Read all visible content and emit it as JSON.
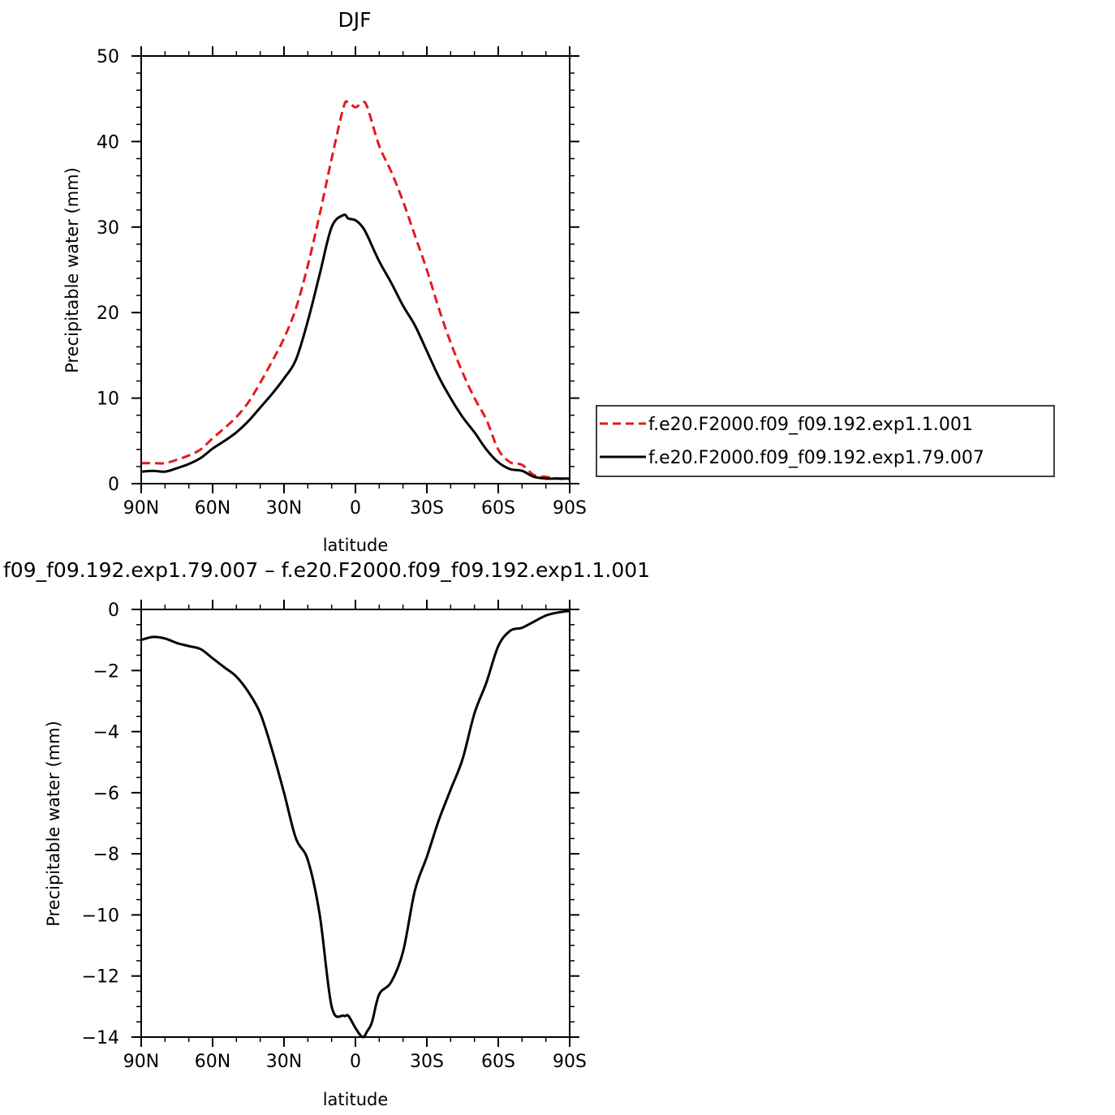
{
  "chart_data": [
    {
      "type": "line",
      "title": "DJF",
      "xlabel": "latitude",
      "ylabel": "Precipitable water (mm)",
      "xlim": [
        -90,
        90
      ],
      "ylim": [
        0,
        50
      ],
      "x_tick_values": [
        -90,
        -60,
        -30,
        0,
        30,
        60,
        90
      ],
      "x_tick_labels": [
        "90N",
        "60N",
        "30N",
        "0",
        "30S",
        "60S",
        "90S"
      ],
      "y_ticks": [
        0,
        10,
        20,
        30,
        40,
        50
      ],
      "x": [
        -90,
        -85,
        -80,
        -75,
        -70,
        -65,
        -60,
        -55,
        -50,
        -45,
        -40,
        -35,
        -30,
        -25,
        -20,
        -15,
        -10,
        -5,
        -3,
        0,
        3,
        5,
        10,
        15,
        20,
        25,
        30,
        35,
        40,
        45,
        50,
        55,
        60,
        65,
        70,
        75,
        80,
        85,
        90
      ],
      "series": [
        {
          "name": "f.e20.F2000.f09_f09.192.exp1.1.001",
          "color": "#e41a1c",
          "dash": true,
          "values": [
            2.4,
            2.4,
            2.4,
            2.8,
            3.3,
            4.0,
            5.3,
            6.5,
            7.8,
            9.5,
            11.8,
            14.3,
            17.0,
            20.5,
            25.5,
            31.5,
            38.0,
            44.0,
            44.6,
            44.0,
            44.6,
            44.0,
            39.5,
            36.5,
            33.0,
            29.0,
            25.0,
            20.5,
            16.5,
            13.0,
            10.0,
            7.5,
            4.0,
            2.5,
            2.2,
            1.0,
            0.8,
            0.6,
            0.5
          ]
        },
        {
          "name": "f.e20.F2000.f09_f09.192.exp1.79.007",
          "color": "#000000",
          "dash": false,
          "values": [
            1.4,
            1.5,
            1.4,
            1.8,
            2.3,
            3.0,
            4.1,
            5.0,
            6.0,
            7.3,
            8.9,
            10.5,
            12.3,
            14.5,
            19.0,
            24.5,
            30.0,
            31.4,
            31.0,
            30.8,
            30.0,
            29.0,
            26.0,
            23.5,
            20.8,
            18.5,
            15.5,
            12.5,
            10.0,
            7.8,
            6.0,
            4.0,
            2.5,
            1.7,
            1.5,
            0.8,
            0.6,
            0.6,
            0.6
          ]
        }
      ],
      "legend": {
        "placement": "right",
        "entries": [
          "f.e20.F2000.f09_f09.192.exp1.1.001",
          "f.e20.F2000.f09_f09.192.exp1.79.007"
        ]
      }
    },
    {
      "type": "line",
      "title": "f09_f09.192.exp1.79.007 – f.e20.F2000.f09_f09.192.exp1.1.001",
      "xlabel": "latitude",
      "ylabel": "Precipitable water (mm)",
      "xlim": [
        -90,
        90
      ],
      "ylim": [
        -14,
        0
      ],
      "x_tick_values": [
        -90,
        -60,
        -30,
        0,
        30,
        60,
        90
      ],
      "x_tick_labels": [
        "90N",
        "60N",
        "30N",
        "0",
        "30S",
        "60S",
        "90S"
      ],
      "y_ticks": [
        0,
        -2,
        -4,
        -6,
        -8,
        -10,
        -12,
        -14
      ],
      "y_tick_labels": [
        "0",
        "−2",
        "−4",
        "−6",
        "−8",
        "−10",
        "−12",
        "−14"
      ],
      "x": [
        -90,
        -85,
        -80,
        -75,
        -70,
        -65,
        -60,
        -55,
        -50,
        -45,
        -40,
        -35,
        -30,
        -25,
        -20,
        -15,
        -10,
        -5,
        -3,
        0,
        3,
        5,
        7,
        10,
        15,
        20,
        25,
        30,
        35,
        40,
        45,
        50,
        55,
        60,
        65,
        70,
        75,
        80,
        85,
        90
      ],
      "series": [
        {
          "name": "",
          "color": "#000000",
          "dash": false,
          "values": [
            -1.0,
            -0.9,
            -0.95,
            -1.1,
            -1.2,
            -1.3,
            -1.6,
            -1.9,
            -2.2,
            -2.7,
            -3.4,
            -4.6,
            -6.0,
            -7.5,
            -8.2,
            -10.0,
            -13.0,
            -13.3,
            -13.3,
            -13.7,
            -14.0,
            -13.8,
            -13.5,
            -12.6,
            -12.2,
            -11.2,
            -9.2,
            -8.1,
            -6.9,
            -5.9,
            -4.9,
            -3.4,
            -2.4,
            -1.2,
            -0.7,
            -0.6,
            -0.4,
            -0.2,
            -0.1,
            -0.05
          ]
        }
      ]
    }
  ]
}
